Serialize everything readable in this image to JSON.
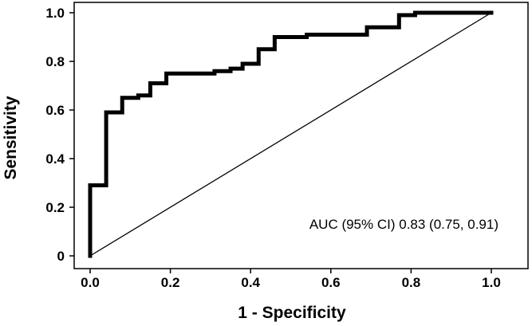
{
  "chart_data": {
    "type": "line",
    "title": "",
    "xlabel": "1 - Specificity",
    "ylabel": "Sensitivity",
    "xlim": [
      0,
      1
    ],
    "ylim": [
      0,
      1
    ],
    "x_ticks": [
      "0.0",
      "0.2",
      "0.4",
      "0.6",
      "0.8",
      "1.0"
    ],
    "y_ticks": [
      "0",
      "0.2",
      "0.4",
      "0.6",
      "0.8",
      "1.0"
    ],
    "grid": false,
    "annotation": "AUC (95% CI) 0.83 (0.75, 0.91)",
    "series": [
      {
        "role": "roc-curve",
        "line_style": "thick-step",
        "color": "#000000",
        "x": [
          0.0,
          0.0,
          0.04,
          0.04,
          0.08,
          0.08,
          0.12,
          0.12,
          0.15,
          0.15,
          0.19,
          0.19,
          0.31,
          0.31,
          0.35,
          0.35,
          0.38,
          0.38,
          0.42,
          0.42,
          0.46,
          0.46,
          0.54,
          0.54,
          0.69,
          0.69,
          0.77,
          0.77,
          0.81,
          0.81,
          1.0
        ],
        "y": [
          0.0,
          0.29,
          0.29,
          0.59,
          0.59,
          0.65,
          0.65,
          0.66,
          0.66,
          0.71,
          0.71,
          0.75,
          0.75,
          0.76,
          0.76,
          0.77,
          0.77,
          0.79,
          0.79,
          0.85,
          0.85,
          0.9,
          0.9,
          0.91,
          0.91,
          0.94,
          0.94,
          0.99,
          0.99,
          1.0,
          1.0
        ]
      },
      {
        "role": "reference-line",
        "line_style": "thin",
        "color": "#000000",
        "x": [
          0.0,
          1.0
        ],
        "y": [
          0.0,
          1.0
        ]
      }
    ]
  }
}
